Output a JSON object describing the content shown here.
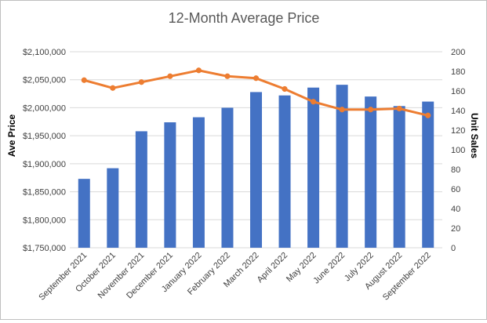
{
  "chart_data": {
    "type": "bar+line",
    "title": "12-Month Average Price",
    "categories": [
      "September 2021",
      "October 2021",
      "November 2021",
      "December 2021",
      "January 2022",
      "February 2022",
      "March 2022",
      "April 2022",
      "May 2022",
      "June 2022",
      "July 2022",
      "August 2022",
      "September 2022"
    ],
    "y_left": {
      "label": "Ave Price",
      "range": [
        1750000,
        2100000
      ],
      "ticks": [
        "$1,750,000",
        "$1,800,000",
        "$1,850,000",
        "$1,900,000",
        "$1,950,000",
        "$2,000,000",
        "$2,050,000",
        "$2,100,000"
      ]
    },
    "y_right": {
      "label": "Unit Sales",
      "range": [
        0,
        200
      ],
      "ticks": [
        "0",
        "20",
        "40",
        "60",
        "80",
        "100",
        "120",
        "140",
        "160",
        "180",
        "200"
      ]
    },
    "series": [
      {
        "type": "bar",
        "axis": "left",
        "color": "#4472c4",
        "values": [
          1873000,
          1892000,
          1958000,
          1974000,
          1983000,
          2000000,
          2028000,
          2022000,
          2036000,
          2041000,
          2020000,
          2003000,
          2011000
        ]
      },
      {
        "type": "line",
        "axis": "right",
        "color": "#ed7d31",
        "values": [
          171,
          163,
          169,
          175,
          181,
          175,
          173,
          162,
          149,
          141,
          141,
          142,
          135
        ]
      }
    ],
    "grid": true,
    "legend": "none"
  }
}
